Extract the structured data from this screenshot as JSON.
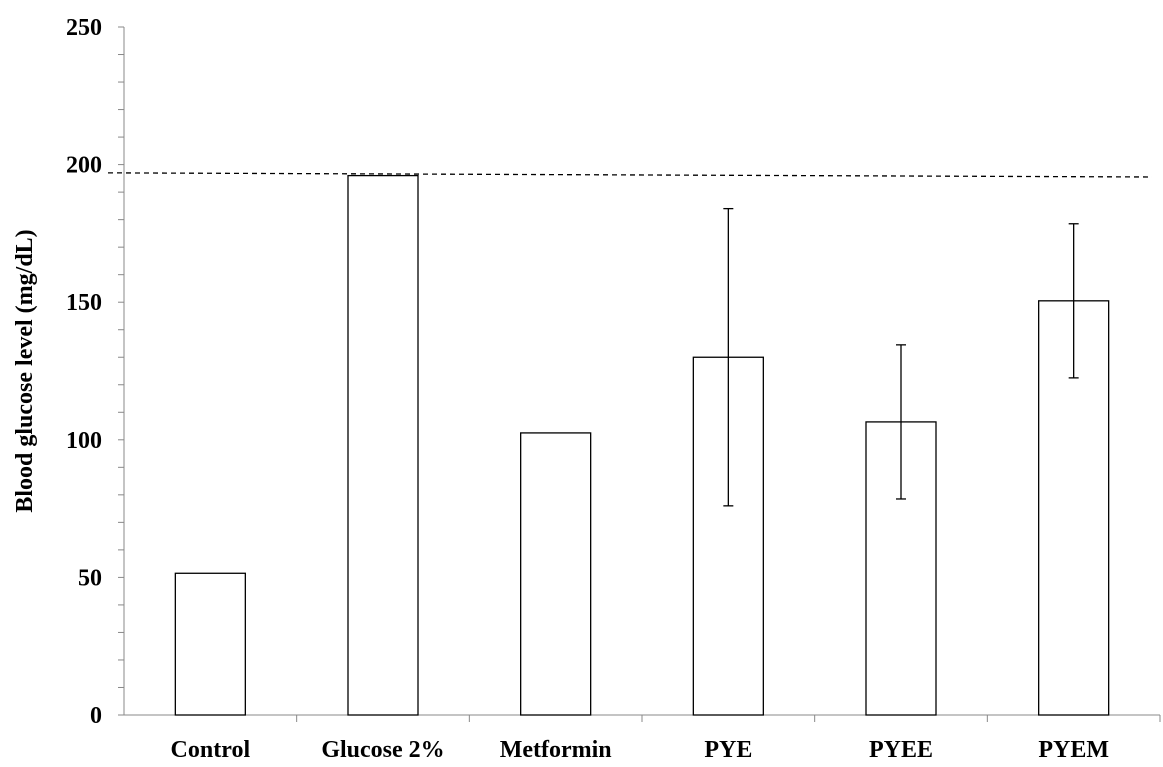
{
  "chart_data": {
    "type": "bar",
    "title": "",
    "xlabel": "",
    "ylabel": "Blood glucose level (mg/dL)",
    "categories": [
      "Control",
      "Glucose 2%",
      "Metformin",
      "PYE",
      "PYEE",
      "PYEM"
    ],
    "series": [
      {
        "values": [
          51.5,
          196,
          102.5,
          130,
          106.5,
          150.5
        ],
        "error": [
          null,
          null,
          null,
          54,
          28,
          28
        ]
      }
    ],
    "ylim": [
      0,
      250
    ],
    "yticks": [
      0,
      50,
      100,
      150,
      200,
      250
    ],
    "y_minor_step": 10,
    "reference_line": {
      "y_start": 197,
      "y_end": 195.5,
      "style": "dashed"
    },
    "bar_fill": "#ffffff",
    "bar_stroke": "#000000",
    "grid": false,
    "legend": "none"
  }
}
